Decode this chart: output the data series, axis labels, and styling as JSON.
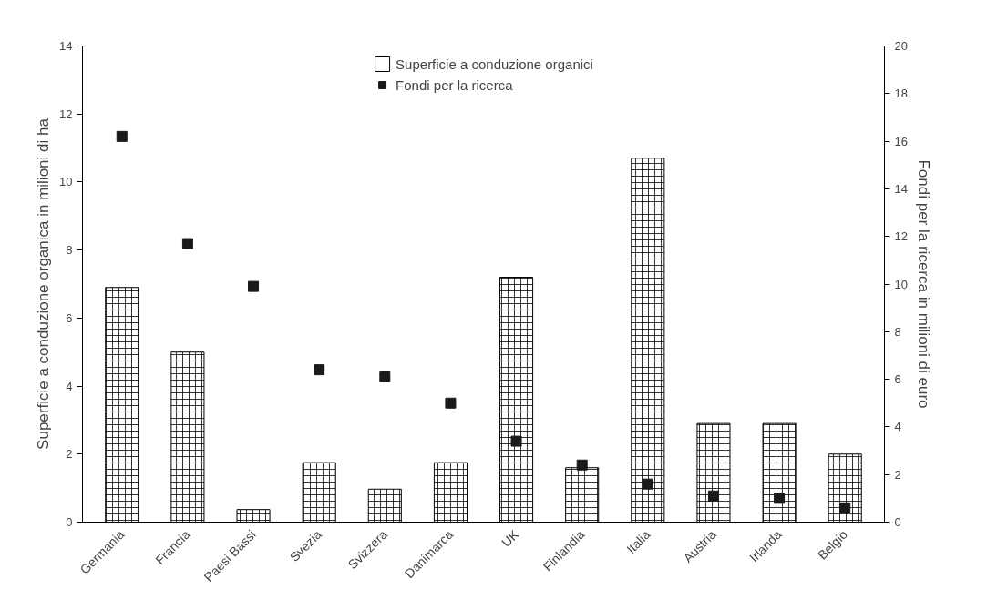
{
  "chart_data": {
    "type": "bar",
    "categories": [
      "Germania",
      "Francia",
      "Paesi Bassi",
      "Svezia",
      "Svizzera",
      "Danimarca",
      "UK",
      "Finlandia",
      "Italia",
      "Austria",
      "Irlanda",
      "Belgio"
    ],
    "ylabel": "Superficie a conduzione organica in milioni di ha",
    "y2label": "Fondi per la ricerca in milioni di euro",
    "ylim": [
      0,
      14
    ],
    "yticks": [
      0,
      2,
      4,
      6,
      8,
      10,
      12,
      14
    ],
    "y2lim": [
      0,
      20
    ],
    "y2ticks": [
      0,
      2,
      4,
      6,
      8,
      10,
      12,
      14,
      16,
      18,
      20
    ],
    "series": [
      {
        "name": "Superficie a conduzione organici",
        "color": "#ffffff",
        "values": [
          6.9,
          5.0,
          0.37,
          1.75,
          0.97,
          1.75,
          7.2,
          1.6,
          10.7,
          2.9,
          2.9,
          2.0
        ]
      },
      {
        "name": "Fondi per la ricerca",
        "type": "scatter",
        "axis": "y2",
        "color": "#1a1a1a",
        "values": [
          16.2,
          11.7,
          9.9,
          6.4,
          6.1,
          5.0,
          3.4,
          2.4,
          1.6,
          1.1,
          1.0,
          0.6
        ]
      }
    ],
    "marker": "square",
    "legend": "top",
    "grid": false
  }
}
